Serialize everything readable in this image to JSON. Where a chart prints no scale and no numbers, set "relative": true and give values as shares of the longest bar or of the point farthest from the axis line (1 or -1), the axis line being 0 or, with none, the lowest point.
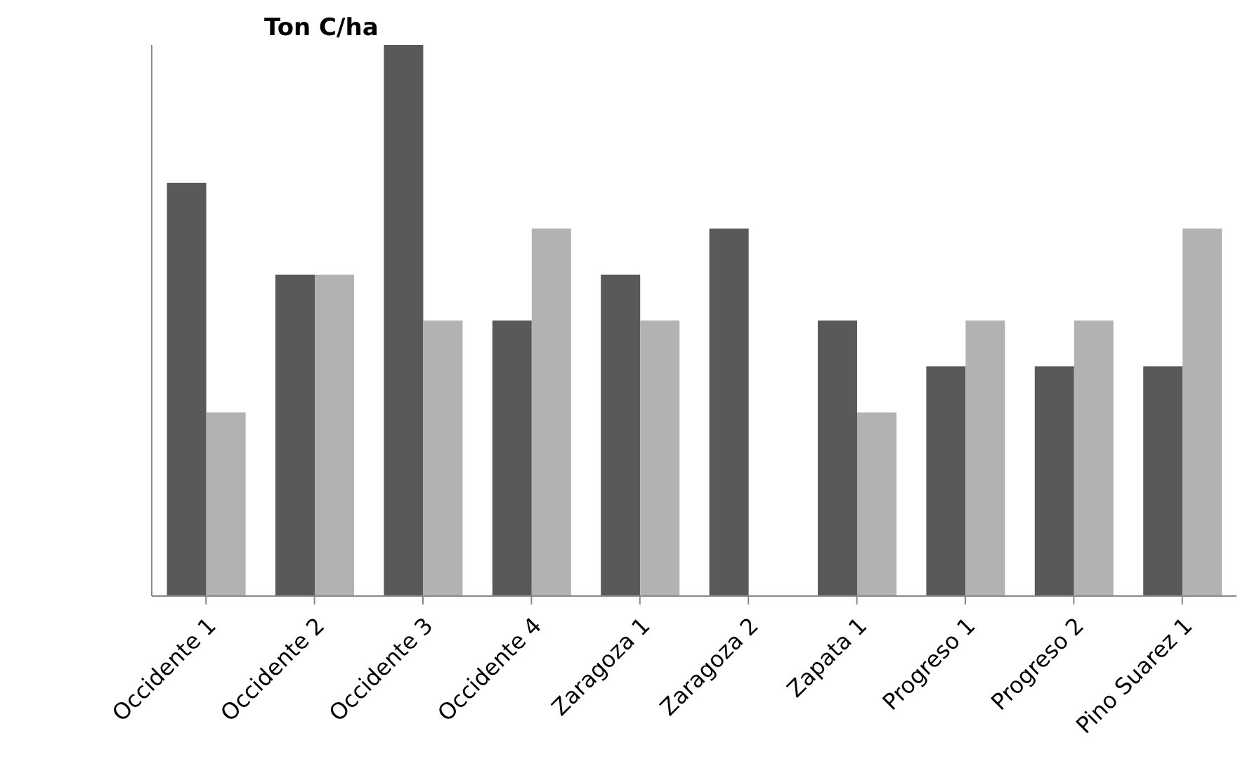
{
  "chart_data": {
    "type": "bar",
    "title": "Ton C/ha",
    "relative": true,
    "categories": [
      "Occidente 1",
      "Occidente 2",
      "Occidente 3",
      "Occidente 4",
      "Zaragoza 1",
      "Zaragoza 2",
      "Zapata 1",
      "Progreso 1",
      "Progreso 2",
      "Pino Suarez 1"
    ],
    "series": [
      {
        "color": "#595959",
        "values": [
          0.75,
          0.5833,
          1,
          0.5,
          0.5833,
          0.6667,
          0.5,
          0.4167,
          0.4167,
          0.4167
        ]
      },
      {
        "color": "#b2b2b2",
        "values": [
          0.3333,
          0.5833,
          0.5,
          0.6667,
          0.5,
          null,
          0.3333,
          0.5,
          0.5,
          0.6667
        ]
      }
    ],
    "grid": false
  }
}
